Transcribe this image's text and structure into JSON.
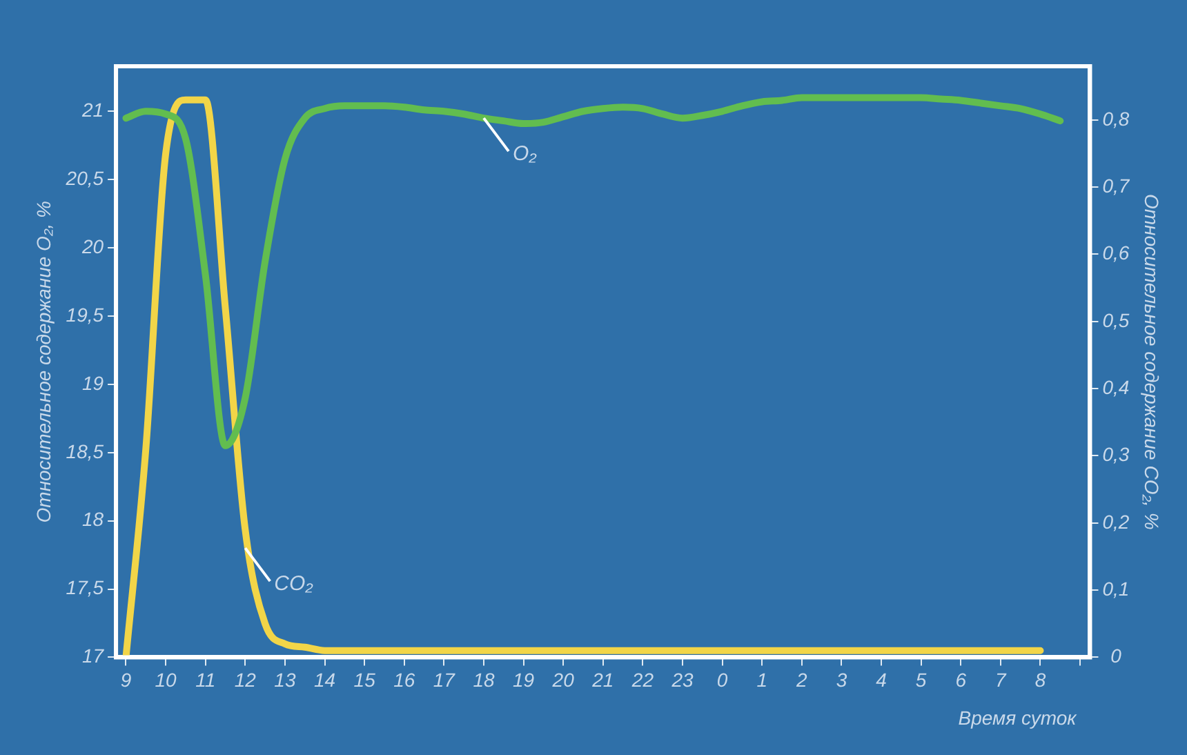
{
  "chart_data": {
    "type": "line",
    "xlabel": "Время суток",
    "ylabel": "Относительное содержание O₂, %",
    "y2label": "Относительное содержание CO₂, %",
    "categories": [
      "9",
      null,
      "10",
      null,
      "11",
      null,
      "12",
      null,
      "13",
      null,
      "14",
      null,
      "15",
      null,
      "16",
      null,
      "17",
      null,
      "18",
      null,
      "19",
      null,
      "20",
      null,
      "21",
      null,
      "22",
      null,
      "23",
      null,
      "0",
      null,
      "1",
      null,
      "2",
      null,
      "3",
      null,
      "4",
      null,
      "5",
      null,
      "6",
      null,
      "7",
      null,
      "8",
      null,
      null
    ],
    "ylim": [
      17,
      21.33
    ],
    "yticks": [
      17,
      {
        "value": 17.5,
        "label": "17,5"
      },
      18,
      {
        "value": 18.5,
        "label": "18,5"
      },
      19,
      {
        "value": 19.5,
        "label": "19,5"
      },
      20,
      {
        "value": 20.5,
        "label": "20,5"
      },
      21
    ],
    "y2lim": [
      0,
      0.88
    ],
    "y2ticks": [
      0,
      {
        "value": 0.1,
        "label": "0,1"
      },
      {
        "value": 0.2,
        "label": "0,2"
      },
      {
        "value": 0.3,
        "label": "0,3"
      },
      {
        "value": 0.4,
        "label": "0,4"
      },
      {
        "value": 0.5,
        "label": "0,5"
      },
      {
        "value": 0.6,
        "label": "0,6"
      },
      {
        "value": 0.7,
        "label": "0,7"
      },
      {
        "value": 0.8,
        "label": "0,8"
      }
    ],
    "grid": false,
    "legend": false,
    "marker": "none",
    "line_style": "solid",
    "series": [
      {
        "color": "#62bd4f",
        "values": [
          20.95,
          21.0,
          20.98,
          20.8,
          19.8,
          18.55,
          18.9,
          19.9,
          20.65,
          20.95,
          21.02,
          21.04,
          21.04,
          21.04,
          21.03,
          21.01,
          21.0,
          20.98,
          20.95,
          20.93,
          20.91,
          20.92,
          20.96,
          21.0,
          21.02,
          21.03,
          21.02,
          20.98,
          20.95,
          20.97,
          21.0,
          21.04,
          21.07,
          21.08,
          21.1,
          21.1,
          21.1,
          21.1,
          21.1,
          21.1,
          21.1,
          21.09,
          21.08,
          21.06,
          21.04,
          21.02,
          20.98,
          20.93,
          null
        ]
      },
      {
        "color": "#f2d548",
        "axis": "y2",
        "values": [
          0.0,
          0.31,
          0.75,
          0.83,
          0.83,
          0.52,
          0.19,
          0.05,
          0.02,
          0.015,
          0.01,
          0.01,
          0.01,
          0.01,
          0.01,
          0.01,
          0.01,
          0.01,
          0.01,
          0.01,
          0.01,
          0.01,
          0.01,
          0.01,
          0.01,
          0.01,
          0.01,
          0.01,
          0.01,
          0.01,
          0.01,
          0.01,
          0.01,
          0.01,
          0.01,
          0.01,
          0.01,
          0.01,
          0.01,
          0.01,
          0.01,
          0.01,
          0.01,
          0.01,
          0.01,
          0.01,
          0.01,
          null,
          null
        ]
      }
    ],
    "annotations": [
      {
        "text": "O₂",
        "x": "18",
        "y": 20.95
      },
      {
        "text": "CO₂",
        "x": "12",
        "y": 17.8
      }
    ]
  }
}
